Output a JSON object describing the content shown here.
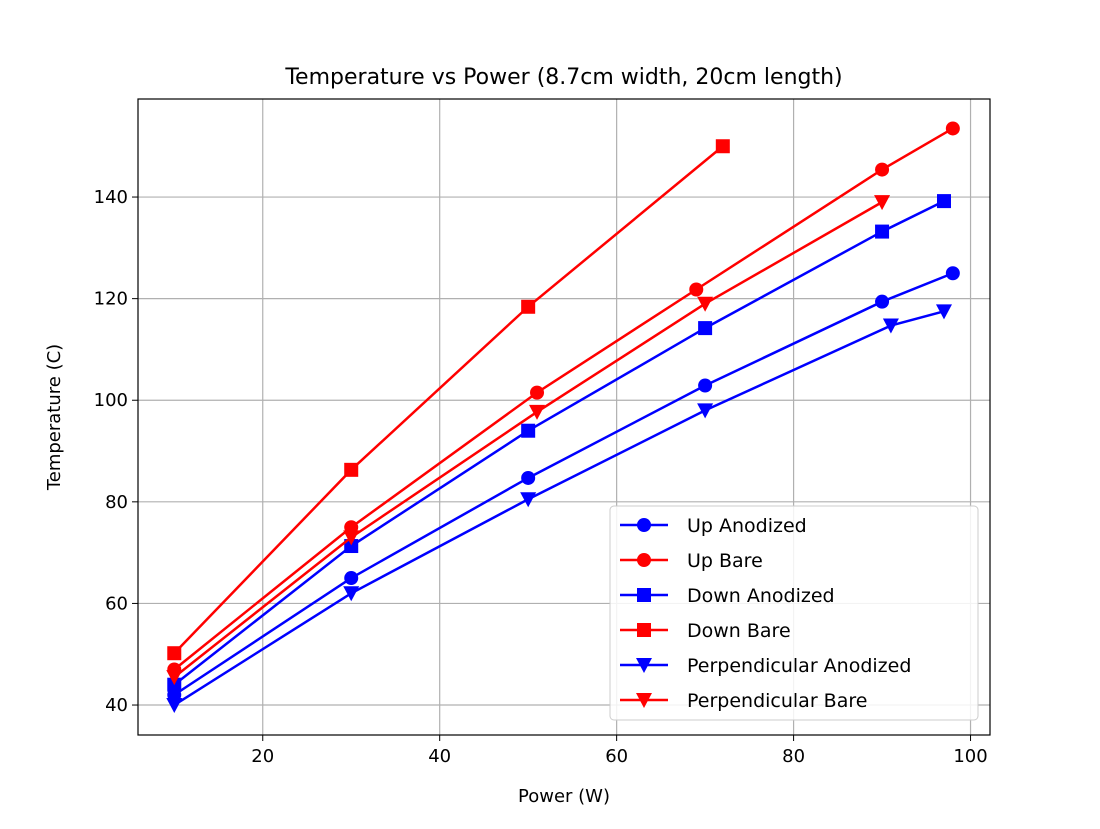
{
  "chart_data": {
    "type": "line",
    "title": "Temperature vs Power (8.7cm width, 20cm length)",
    "xlabel": "Power (W)",
    "ylabel": "Temperature (C)",
    "xlim": [
      5.9,
      102.2
    ],
    "ylim": [
      34.1,
      159.3
    ],
    "xticks": [
      20,
      40,
      60,
      80,
      100
    ],
    "yticks": [
      40,
      60,
      80,
      100,
      120,
      140
    ],
    "grid": true,
    "legend_position": "lower-right",
    "series": [
      {
        "name": "Up Anodized",
        "color": "#0000ff",
        "marker": "circle",
        "x": [
          10,
          30,
          50,
          70,
          90,
          98
        ],
        "y": [
          42,
          65,
          84.7,
          102.9,
          119.4,
          125
        ]
      },
      {
        "name": "Up Bare",
        "color": "#ff0000",
        "marker": "circle",
        "x": [
          10,
          30,
          51,
          69,
          90,
          98
        ],
        "y": [
          47,
          75,
          101.5,
          121.8,
          145.4,
          153.5
        ]
      },
      {
        "name": "Down Anodized",
        "color": "#0000ff",
        "marker": "square",
        "x": [
          10,
          30,
          50,
          70,
          90,
          97
        ],
        "y": [
          44,
          71.3,
          94,
          114.2,
          133.2,
          139.2
        ]
      },
      {
        "name": "Down Bare",
        "color": "#ff0000",
        "marker": "square",
        "x": [
          10,
          30,
          50,
          72
        ],
        "y": [
          50.2,
          86.3,
          118.4,
          150
        ]
      },
      {
        "name": "Perpendicular Anodized",
        "color": "#0000ff",
        "marker": "triangle-down",
        "x": [
          10,
          30,
          50,
          70,
          91,
          97
        ],
        "y": [
          40,
          62,
          80.5,
          98,
          114.7,
          117.5
        ]
      },
      {
        "name": "Perpendicular Bare",
        "color": "#ff0000",
        "marker": "triangle-down",
        "x": [
          10,
          30,
          51,
          70,
          90
        ],
        "y": [
          45.5,
          73,
          97.7,
          119,
          139
        ]
      }
    ]
  }
}
